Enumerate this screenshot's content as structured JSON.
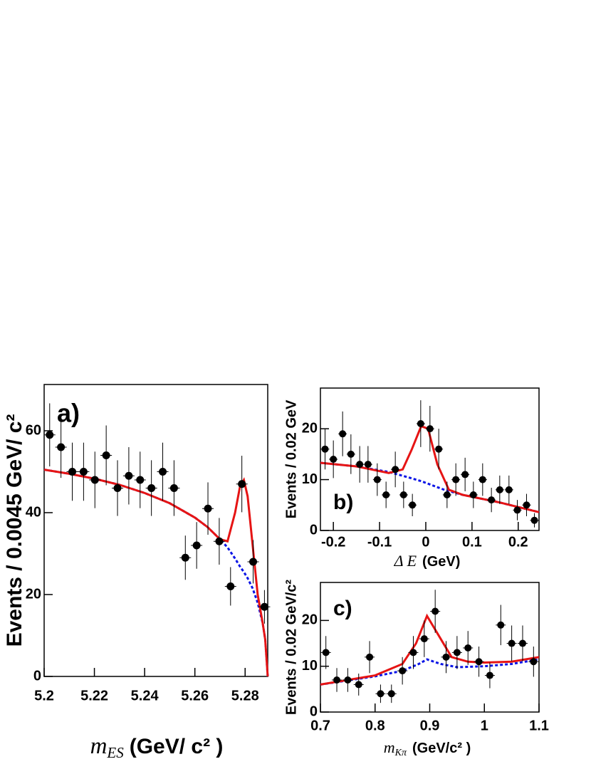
{
  "chart_data": [
    {
      "type": "scatter",
      "label": "a)",
      "ylabel": "Events / 0.0045 GeV/ c²",
      "xlabel": {
        "symbol": "m",
        "subscript": "ES",
        "unit": "(GeV/ c² )"
      },
      "xlim": [
        5.2,
        5.289
      ],
      "ylim": [
        0,
        71.3
      ],
      "xticks": [
        5.2,
        5.22,
        5.24,
        5.26,
        5.28
      ],
      "yticks": [
        0,
        20,
        40,
        60
      ],
      "points": {
        "color": "#000000",
        "x": [
          5.2022,
          5.2067,
          5.2112,
          5.2157,
          5.2202,
          5.2247,
          5.2292,
          5.2337,
          5.2382,
          5.2427,
          5.2472,
          5.2517,
          5.2562,
          5.2607,
          5.2652,
          5.2697,
          5.2742,
          5.2787,
          5.2832,
          5.2877
        ],
        "values": [
          59,
          56,
          50,
          50,
          48,
          54,
          46,
          49,
          48,
          46,
          50,
          46,
          29,
          32,
          41,
          33,
          22,
          47,
          28,
          17
        ],
        "errors": [
          7.7,
          7.5,
          7.1,
          7.1,
          6.9,
          7.3,
          6.8,
          7,
          6.9,
          6.8,
          7.1,
          6.8,
          5.4,
          5.7,
          6.4,
          5.7,
          4.7,
          6.9,
          5.3,
          4.1
        ]
      },
      "curves": [
        {
          "color": "#0a14e6",
          "dashed": true,
          "x": [
            5.2,
            5.21,
            5.22,
            5.23,
            5.24,
            5.25,
            5.26,
            5.265,
            5.27,
            5.273,
            5.276,
            5.278,
            5.2795,
            5.281,
            5.283,
            5.285,
            5.287,
            5.288,
            5.289
          ],
          "values": [
            50.5,
            49.5,
            48.3,
            46.8,
            44.8,
            42.3,
            38.8,
            36.5,
            33.5,
            31.5,
            28.8,
            26.8,
            25.5,
            24,
            21.5,
            18,
            13,
            9,
            0
          ]
        },
        {
          "color": "#e61414",
          "dashed": false,
          "x": [
            5.2,
            5.21,
            5.22,
            5.23,
            5.24,
            5.25,
            5.26,
            5.265,
            5.27,
            5.273,
            5.276,
            5.278,
            5.2795,
            5.281,
            5.283,
            5.285,
            5.287,
            5.288,
            5.289
          ],
          "values": [
            50.5,
            49.5,
            48.3,
            46.8,
            44.8,
            42.3,
            38.8,
            36.5,
            33.5,
            33,
            40,
            46.5,
            48,
            44,
            32,
            20,
            13,
            9,
            0
          ]
        }
      ]
    },
    {
      "type": "scatter",
      "label": "b)",
      "ylabel": "Events / 0.02 GeV",
      "xlabel": {
        "symbol": "Δ E",
        "unit": "(GeV)"
      },
      "xlim": [
        -0.228,
        0.245
      ],
      "ylim": [
        0,
        28
      ],
      "xticks": [
        -0.2,
        -0.1,
        0,
        0.1,
        0.2
      ],
      "yticks": [
        0,
        10,
        20
      ],
      "points": {
        "color": "#000000",
        "x": [
          -0.218,
          -0.2,
          -0.18,
          -0.162,
          -0.143,
          -0.125,
          -0.105,
          -0.086,
          -0.066,
          -0.048,
          -0.029,
          -0.011,
          0.009,
          0.028,
          0.046,
          0.065,
          0.085,
          0.103,
          0.123,
          0.142,
          0.16,
          0.18,
          0.198,
          0.218,
          0.235
        ],
        "values": [
          16,
          14,
          19,
          15,
          13,
          13,
          10,
          7,
          12,
          7,
          5,
          21,
          20,
          16,
          7,
          10,
          11,
          7,
          10,
          6,
          8,
          8,
          4,
          5,
          2
        ],
        "errors": [
          4,
          3.7,
          4.4,
          3.9,
          3.6,
          3.6,
          3.2,
          2.6,
          3.5,
          2.6,
          2.2,
          4.6,
          4.5,
          4,
          2.6,
          3.2,
          3.3,
          2.6,
          3.2,
          2.4,
          2.8,
          2.8,
          2,
          2.2,
          1.4
        ]
      },
      "curves": [
        {
          "color": "#0a14e6",
          "dashed": true,
          "x": [
            -0.228,
            -0.15,
            -0.08,
            -0.04,
            -0.01,
            0.04,
            0.08,
            0.16,
            0.245
          ],
          "values": [
            13.3,
            12.6,
            11.5,
            10.5,
            9.7,
            8,
            7,
            5.5,
            3.6
          ]
        },
        {
          "color": "#e61414",
          "dashed": false,
          "x": [
            -0.228,
            -0.15,
            -0.08,
            -0.05,
            -0.03,
            -0.01,
            0.005,
            0.025,
            0.05,
            0.08,
            0.16,
            0.245
          ],
          "values": [
            13.3,
            12.6,
            11.3,
            12,
            16,
            20.5,
            20,
            13,
            8,
            7,
            5.5,
            3.6
          ]
        }
      ]
    },
    {
      "type": "scatter",
      "label": "c)",
      "ylabel": "Events / 0.02 GeV/c²",
      "xlabel": {
        "symbol": "m",
        "subscript": "Kπ",
        "unit": "(GeV/c² )"
      },
      "xlim": [
        0.7,
        1.1
      ],
      "ylim": [
        0,
        28.3
      ],
      "xticks": [
        0.7,
        0.8,
        0.9,
        1,
        1.1
      ],
      "yticks": [
        0,
        10,
        20
      ],
      "points": {
        "color": "#000000",
        "x": [
          0.71,
          0.73,
          0.75,
          0.77,
          0.79,
          0.81,
          0.83,
          0.85,
          0.87,
          0.89,
          0.91,
          0.93,
          0.95,
          0.97,
          0.99,
          1.01,
          1.03,
          1.05,
          1.07,
          1.09
        ],
        "values": [
          13,
          7,
          7,
          6,
          12,
          4,
          4,
          9,
          13,
          16,
          22,
          12,
          13,
          14,
          11,
          8,
          19,
          15,
          15,
          11
        ],
        "errors": [
          3.6,
          2.6,
          2.6,
          2.4,
          3.5,
          2,
          2,
          3,
          3.6,
          4,
          4.7,
          3.5,
          3.6,
          3.7,
          3.3,
          2.8,
          4.4,
          3.9,
          3.9,
          3.3
        ]
      },
      "curves": [
        {
          "color": "#0a14e6",
          "dashed": true,
          "x": [
            0.7,
            0.8,
            0.85,
            0.88,
            0.895,
            0.92,
            0.95,
            1,
            1.05,
            1.1
          ],
          "values": [
            6,
            7.8,
            9,
            10.5,
            11.5,
            10.5,
            9.8,
            10,
            10.5,
            11.5
          ]
        },
        {
          "color": "#e61414",
          "dashed": false,
          "x": [
            0.7,
            0.8,
            0.85,
            0.875,
            0.895,
            0.915,
            0.94,
            0.97,
            1,
            1.05,
            1.1
          ],
          "values": [
            6,
            8,
            10.5,
            15,
            21,
            17,
            12,
            11,
            10.8,
            11,
            12
          ]
        }
      ]
    }
  ]
}
